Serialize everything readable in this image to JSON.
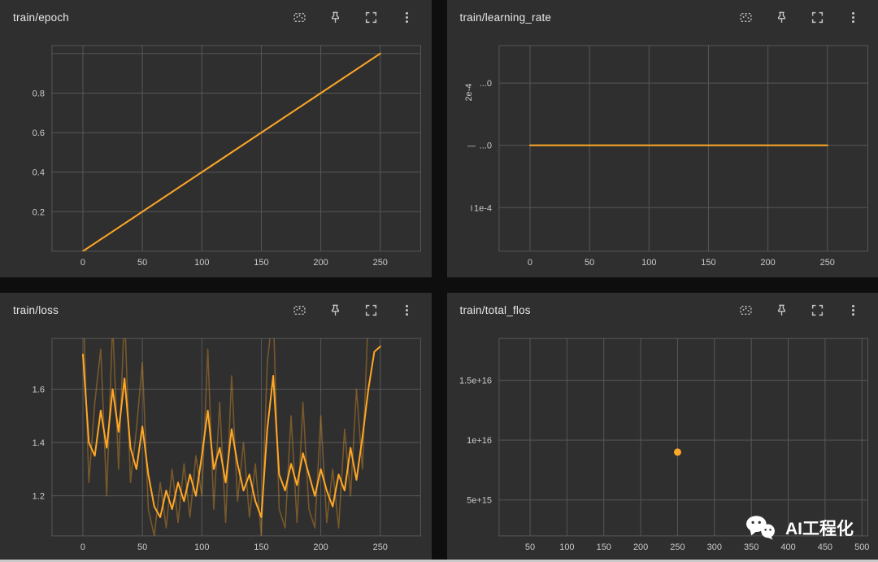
{
  "theme": {
    "page_bg": "#0e0e0e",
    "panel_bg": "#2f2f2f",
    "grid_color": "#575757",
    "axis_text": "#c9c9c9",
    "title_color": "#e8e8e8",
    "icon_color": "#c6c6c6",
    "accent": "#ffa726",
    "raw_series_opacity": 0.35
  },
  "toolbar_icons": [
    "fit-data-icon",
    "pin-icon",
    "fullscreen-icon",
    "more-options-icon"
  ],
  "watermark": {
    "label": "AI工程化",
    "icon": "wechat-icon"
  },
  "chart_data": [
    {
      "title": "train/epoch",
      "type": "line",
      "xlim": [
        -26,
        284
      ],
      "ylim": [
        0,
        1.04
      ],
      "xticks": [
        {
          "v": 0,
          "label": "0"
        },
        {
          "v": 50,
          "label": "50"
        },
        {
          "v": 100,
          "label": "100"
        },
        {
          "v": 150,
          "label": "150"
        },
        {
          "v": 200,
          "label": "200"
        },
        {
          "v": 250,
          "label": "250"
        }
      ],
      "yticks": [
        {
          "v": 0.2,
          "label": "0.2"
        },
        {
          "v": 0.4,
          "label": "0.4"
        },
        {
          "v": 0.6,
          "label": "0.6"
        },
        {
          "v": 0.8,
          "label": "0.8"
        },
        {
          "v": 1.0,
          "label": ""
        }
      ],
      "series": [
        {
          "name": "train/epoch",
          "kind": "line",
          "width": 2,
          "opacity": 1,
          "x": [
            0,
            250
          ],
          "y": [
            0,
            1.0
          ]
        }
      ]
    },
    {
      "title": "train/learning_rate",
      "type": "line",
      "xlim": [
        -26,
        284
      ],
      "ylim": [
        3e-05,
        0.00036
      ],
      "xticks": [
        {
          "v": 0,
          "label": "0"
        },
        {
          "v": 50,
          "label": "50"
        },
        {
          "v": 100,
          "label": "100"
        },
        {
          "v": 150,
          "label": "150"
        },
        {
          "v": 200,
          "label": "200"
        },
        {
          "v": 250,
          "label": "250"
        }
      ],
      "yticks": [
        {
          "v": 0.0003,
          "label": "...0"
        },
        {
          "v": 0.0002,
          "label": "...0"
        },
        {
          "v": 0.0001,
          "label": "1e-4"
        }
      ],
      "rotated_ylabel": {
        "v": 0.000285,
        "label": "2e-4"
      },
      "yaxis_marks": [
        {
          "v": 0.0002,
          "label": "—"
        },
        {
          "v": 0.0001,
          "label": "I"
        }
      ],
      "series": [
        {
          "name": "train/learning_rate",
          "kind": "line",
          "width": 2,
          "opacity": 1,
          "x": [
            0,
            250
          ],
          "y": [
            0.0002,
            0.0002
          ]
        }
      ]
    },
    {
      "title": "train/loss",
      "type": "line",
      "xlim": [
        -26,
        284
      ],
      "ylim": [
        1.05,
        1.79
      ],
      "xticks": [
        {
          "v": 0,
          "label": "0"
        },
        {
          "v": 50,
          "label": "50"
        },
        {
          "v": 100,
          "label": "100"
        },
        {
          "v": 150,
          "label": "150"
        },
        {
          "v": 200,
          "label": "200"
        },
        {
          "v": 250,
          "label": "250"
        }
      ],
      "yticks": [
        {
          "v": 1.2,
          "label": "1.2"
        },
        {
          "v": 1.4,
          "label": "1.4"
        },
        {
          "v": 1.6,
          "label": "1.6"
        }
      ],
      "series": [
        {
          "name": "train/loss (raw)",
          "kind": "line",
          "width": 1.6,
          "opacity": 0.35,
          "x": [
            0,
            5,
            10,
            15,
            20,
            25,
            30,
            35,
            40,
            45,
            50,
            55,
            60,
            65,
            70,
            75,
            80,
            85,
            90,
            95,
            100,
            105,
            110,
            115,
            120,
            125,
            130,
            135,
            140,
            145,
            150,
            155,
            160,
            165,
            170,
            175,
            180,
            185,
            190,
            195,
            200,
            205,
            210,
            215,
            220,
            225,
            230,
            235,
            240,
            245,
            250
          ],
          "y": [
            1.95,
            1.25,
            1.55,
            1.75,
            1.2,
            1.85,
            1.3,
            1.9,
            1.25,
            1.45,
            1.7,
            1.15,
            1.05,
            1.25,
            1.08,
            1.3,
            1.1,
            1.32,
            1.12,
            1.35,
            1.2,
            1.75,
            1.15,
            1.55,
            1.1,
            1.65,
            1.18,
            1.4,
            1.12,
            1.32,
            1.05,
            1.7,
            1.9,
            1.15,
            1.08,
            1.5,
            1.1,
            1.55,
            1.15,
            1.08,
            1.5,
            1.1,
            1.3,
            1.08,
            1.45,
            1.2,
            1.6,
            1.3,
            1.9,
            1.95,
            1.85
          ]
        },
        {
          "name": "train/loss (smoothed)",
          "kind": "line",
          "width": 2,
          "opacity": 1,
          "x": [
            0,
            5,
            10,
            15,
            20,
            25,
            30,
            35,
            40,
            45,
            50,
            55,
            60,
            65,
            70,
            75,
            80,
            85,
            90,
            95,
            100,
            105,
            110,
            115,
            120,
            125,
            130,
            135,
            140,
            145,
            150,
            155,
            160,
            165,
            170,
            175,
            180,
            185,
            190,
            195,
            200,
            205,
            210,
            215,
            220,
            225,
            230,
            235,
            240,
            245,
            250
          ],
          "y": [
            1.73,
            1.4,
            1.35,
            1.52,
            1.38,
            1.6,
            1.44,
            1.64,
            1.38,
            1.3,
            1.46,
            1.28,
            1.16,
            1.12,
            1.22,
            1.15,
            1.25,
            1.18,
            1.28,
            1.2,
            1.35,
            1.52,
            1.3,
            1.38,
            1.25,
            1.45,
            1.32,
            1.22,
            1.28,
            1.18,
            1.12,
            1.45,
            1.65,
            1.28,
            1.22,
            1.32,
            1.24,
            1.36,
            1.28,
            1.2,
            1.3,
            1.22,
            1.16,
            1.28,
            1.22,
            1.38,
            1.26,
            1.42,
            1.6,
            1.74,
            1.76
          ]
        }
      ]
    },
    {
      "title": "train/total_flos",
      "type": "scatter",
      "xlim": [
        8,
        508
      ],
      "ylim": [
        2000000000000000.0,
        1.85e+16
      ],
      "xticks": [
        {
          "v": 50,
          "label": "50"
        },
        {
          "v": 100,
          "label": "100"
        },
        {
          "v": 150,
          "label": "150"
        },
        {
          "v": 200,
          "label": "200"
        },
        {
          "v": 250,
          "label": "250"
        },
        {
          "v": 300,
          "label": "300"
        },
        {
          "v": 350,
          "label": "350"
        },
        {
          "v": 400,
          "label": "400"
        },
        {
          "v": 450,
          "label": "450"
        },
        {
          "v": 500,
          "label": "500"
        }
      ],
      "yticks": [
        {
          "v": 5000000000000000.0,
          "label": "5e+15"
        },
        {
          "v": 1e+16,
          "label": "1e+16"
        },
        {
          "v": 1.5e+16,
          "label": "1.5e+16"
        }
      ],
      "series": [
        {
          "name": "train/total_flos",
          "kind": "scatter",
          "r": 4.5,
          "x": [
            250
          ],
          "y": [
            9000000000000000.0
          ]
        }
      ]
    }
  ]
}
